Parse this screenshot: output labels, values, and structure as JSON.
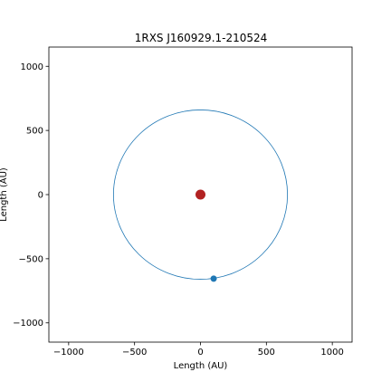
{
  "chart_data": {
    "type": "scatter",
    "title": "1RXS J160929.1-210524",
    "xlabel": "Length (AU)",
    "ylabel": "Length (AU)",
    "xlim": [
      -1150,
      1150
    ],
    "ylim": [
      -1150,
      1150
    ],
    "xticks": [
      -1000,
      -500,
      0,
      500,
      1000
    ],
    "yticks": [
      -1000,
      -500,
      0,
      500,
      1000
    ],
    "grid": false,
    "star": {
      "x": 0,
      "y": 0,
      "color": "#b22222"
    },
    "orbit": {
      "center_x": 0,
      "center_y": 0,
      "radius": 660,
      "color": "#1f77b4"
    },
    "planet": {
      "x": 100,
      "y": -655,
      "color": "#1f77b4"
    }
  }
}
